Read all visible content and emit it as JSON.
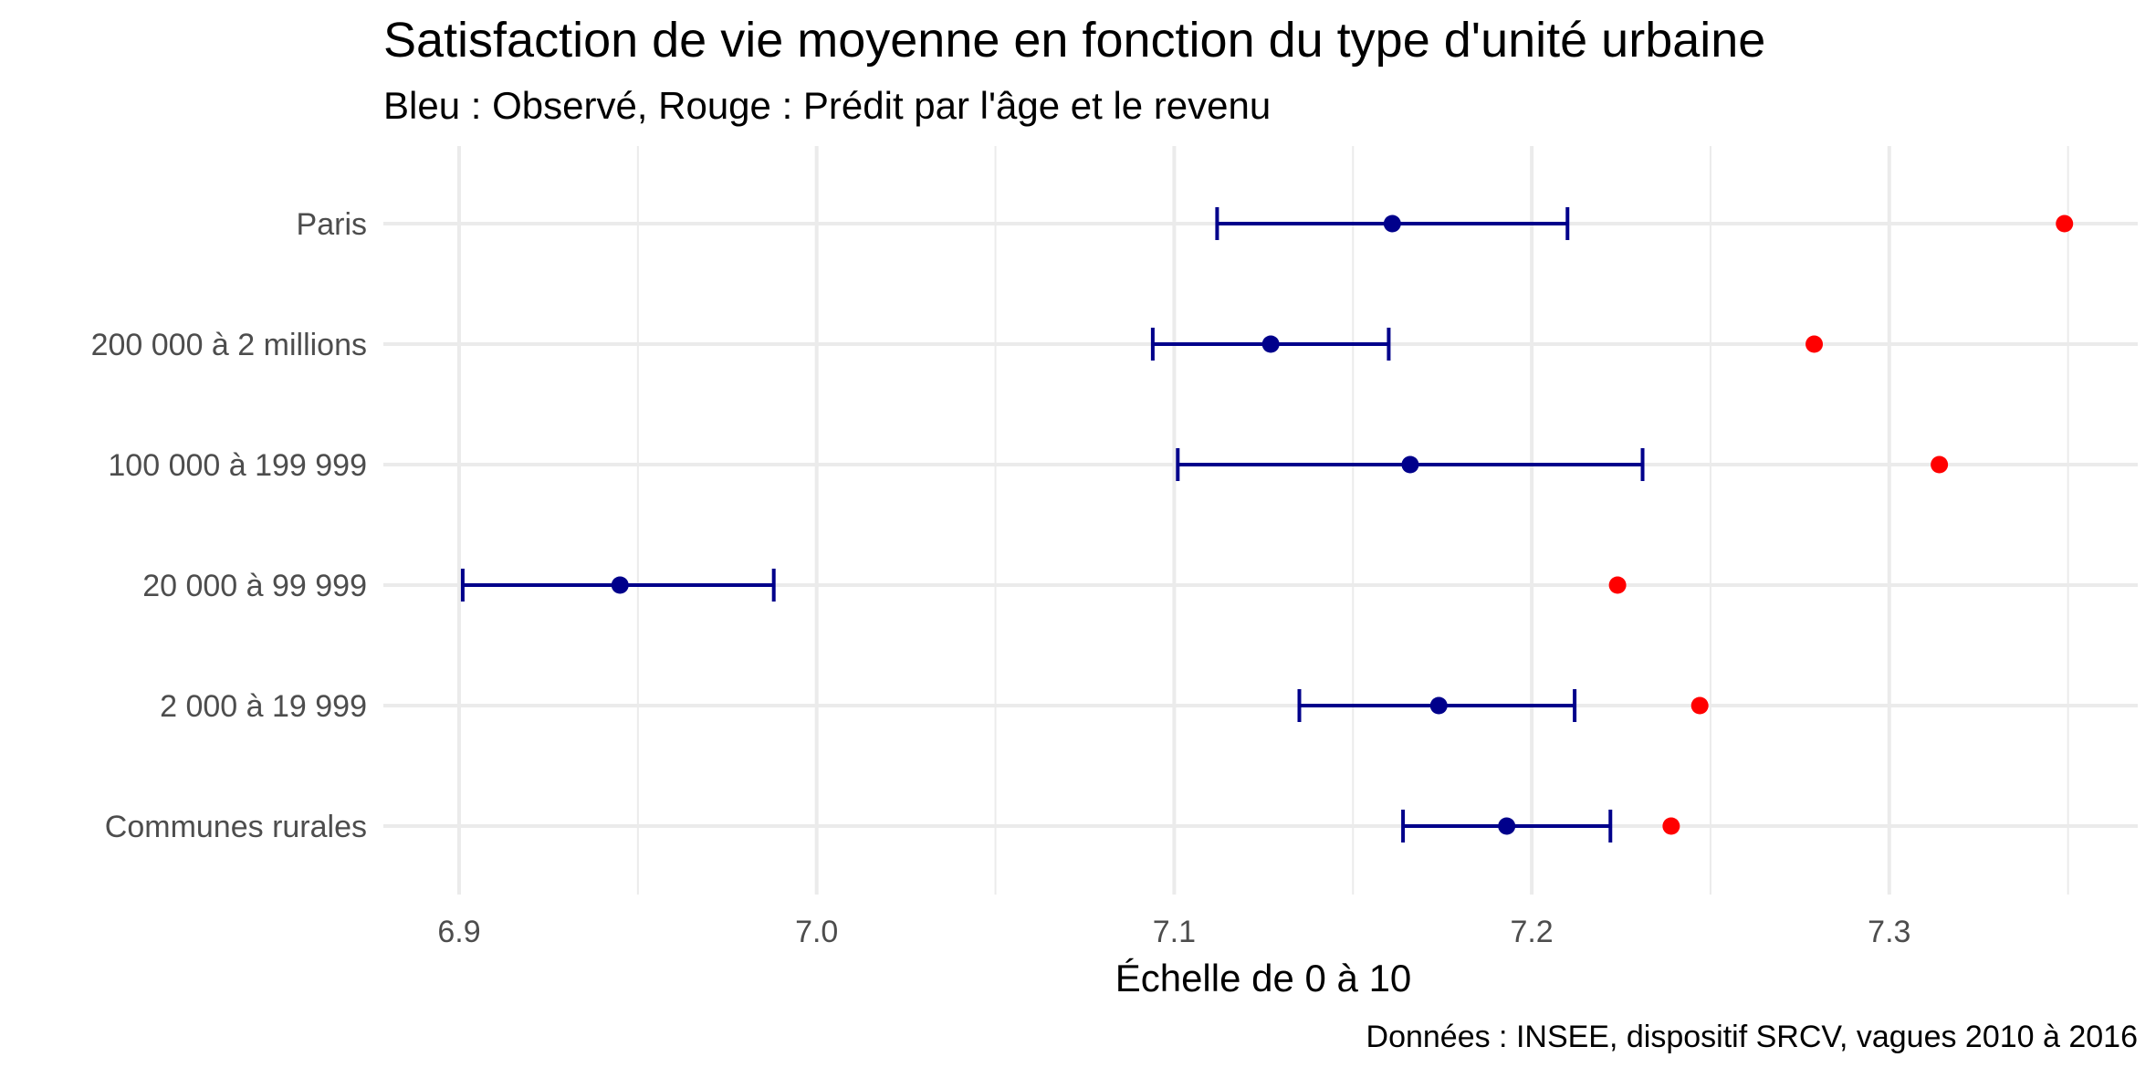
{
  "chart_data": {
    "type": "scatter",
    "title": "Satisfaction de vie moyenne en fonction du type d'unité urbaine",
    "subtitle": "Bleu : Observé, Rouge : Prédit par l'âge et le revenu",
    "xlabel": "Échelle de 0 à 10",
    "ylabel": "",
    "caption": "Données : INSEE, dispositif SRCV, vagues 2010 à 2016",
    "xlim": [
      6.88,
      7.37
    ],
    "x_ticks": [
      6.9,
      7.0,
      7.1,
      7.2,
      7.3
    ],
    "x_tick_labels": [
      "6.9",
      "7.0",
      "7.1",
      "7.2",
      "7.3"
    ],
    "x_minor_ticks": [
      6.95,
      7.05,
      7.15,
      7.25,
      7.35
    ],
    "grid": true,
    "legend": "none",
    "categories": [
      "Paris",
      "200 000 à 2 millions",
      "100 000 à 199 999",
      "20 000 à 99 999",
      "2 000 à 19 999",
      "Communes rurales"
    ],
    "series": [
      {
        "name": "Observé",
        "color": "#00008B",
        "values": [
          7.161,
          7.127,
          7.166,
          6.945,
          7.174,
          7.193
        ],
        "ci_low": [
          7.112,
          7.094,
          7.101,
          6.901,
          7.135,
          7.164
        ],
        "ci_high": [
          7.21,
          7.16,
          7.231,
          6.988,
          7.212,
          7.222
        ]
      },
      {
        "name": "Prédit par l'âge et le revenu",
        "color": "#FF0000",
        "values": [
          7.349,
          7.279,
          7.314,
          7.224,
          7.247,
          7.239
        ]
      }
    ]
  },
  "colors": {
    "observed": "#00008B",
    "predicted": "#FF0000",
    "grid": "#EBEBEB",
    "tick_text": "#4D4D4D",
    "text": "#000000"
  }
}
